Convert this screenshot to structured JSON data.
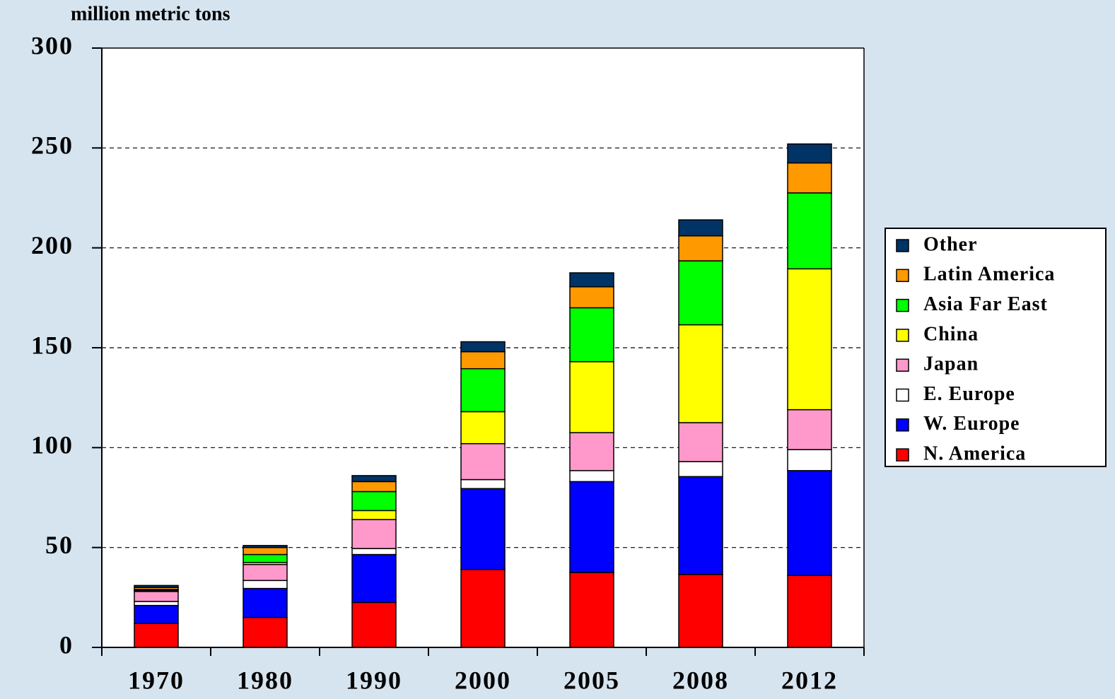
{
  "chart_data": {
    "type": "stacked_bar",
    "y_axis_label": "million metric tons",
    "categories": [
      "1970",
      "1980",
      "1990",
      "2000",
      "2005",
      "2008",
      "2012"
    ],
    "series": [
      {
        "name": "N. America",
        "color": "#ff0000",
        "values": [
          12,
          15,
          22.5,
          39,
          37.5,
          36.5,
          36
        ]
      },
      {
        "name": "W. Europe",
        "color": "#0000ff",
        "values": [
          9,
          14.5,
          24,
          40.5,
          45.5,
          49,
          52.5
        ]
      },
      {
        "name": "E. Europe",
        "color": "#ffffff",
        "values": [
          2,
          4,
          3,
          4.5,
          5.5,
          7.5,
          10.5
        ]
      },
      {
        "name": "Japan",
        "color": "#ff99cc",
        "values": [
          5,
          8,
          14.5,
          18,
          19,
          19.5,
          20
        ]
      },
      {
        "name": "China",
        "color": "#ffff00",
        "values": [
          0.5,
          1,
          4.5,
          16,
          35.5,
          49,
          70.5
        ]
      },
      {
        "name": "Asia Far East",
        "color": "#00ff00",
        "values": [
          0.5,
          4,
          9.5,
          21.5,
          27,
          32,
          38
        ]
      },
      {
        "name": "Latin America",
        "color": "#ff9900",
        "values": [
          1,
          3.5,
          5,
          8.5,
          10.5,
          12.5,
          15
        ]
      },
      {
        "name": "Other",
        "color": "#003366",
        "values": [
          1,
          1,
          3,
          5,
          7,
          8,
          9.5
        ]
      }
    ],
    "ylim": [
      0,
      300
    ],
    "yticks": [
      0,
      50,
      100,
      150,
      200,
      250,
      300
    ],
    "grid": true,
    "legend": "right"
  }
}
